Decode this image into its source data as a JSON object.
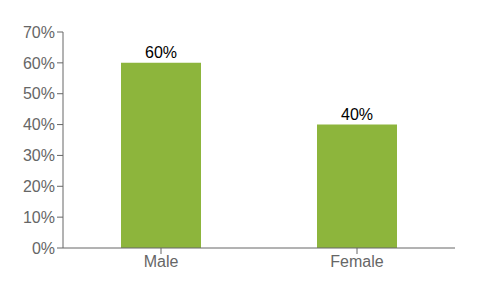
{
  "chart_data": {
    "type": "bar",
    "categories": [
      "Male",
      "Female"
    ],
    "values": [
      60,
      40
    ],
    "value_labels": [
      "60%",
      "40%"
    ],
    "data_labels": true,
    "color": "#8DB53C",
    "ylim": [
      0,
      70
    ],
    "yticks": [
      {
        "value": 0,
        "label": "0%"
      },
      {
        "value": 10,
        "label": "10%"
      },
      {
        "value": 20,
        "label": "20%"
      },
      {
        "value": 30,
        "label": "30%"
      },
      {
        "value": 40,
        "label": "40%"
      },
      {
        "value": 50,
        "label": "50%"
      },
      {
        "value": 60,
        "label": "60%"
      },
      {
        "value": 70,
        "label": "70%"
      }
    ],
    "grid": false
  }
}
